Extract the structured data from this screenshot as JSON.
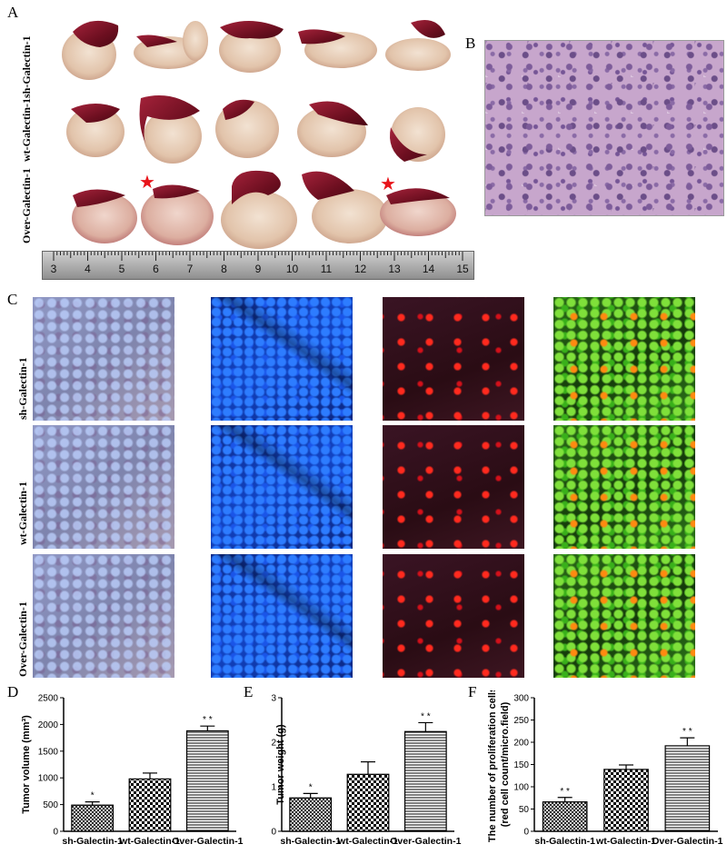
{
  "panels": {
    "A": "A",
    "B": "B",
    "C": "C",
    "D": "D",
    "E": "E",
    "F": "F"
  },
  "groups": [
    "sh-Galectin-1",
    "wt-Galectin-1",
    "Over-Galectin-1"
  ],
  "ruler_ticks": [
    "3",
    "4",
    "5",
    "6",
    "7",
    "8",
    "9",
    "10",
    "11",
    "12",
    "13",
    "14",
    "15"
  ],
  "star_glyph": "★",
  "colors": {
    "star": "#e8141a",
    "tumor_flesh": "#e9d2bd",
    "liver": "#7d1424"
  },
  "chart_data": [
    {
      "type": "bar",
      "panel": "D",
      "categories": [
        "sh-Galectin-1",
        "wt-Galectin-1",
        "Over-Galectin-1"
      ],
      "values": [
        490,
        980,
        1880
      ],
      "errors": [
        60,
        110,
        90
      ],
      "significance": [
        "*",
        "",
        "* *"
      ],
      "ylabel": "Tumor volume (mm³)",
      "yticks": [
        "0",
        "500",
        "1000",
        "1500",
        "2000",
        "2500"
      ],
      "ylim": [
        0,
        2500
      ]
    },
    {
      "type": "bar",
      "panel": "E",
      "categories": [
        "sh-Galectin-1",
        "wt-Galectin-1",
        "Over-Galectin-1"
      ],
      "values": [
        0.75,
        1.28,
        2.24
      ],
      "errors": [
        0.1,
        0.28,
        0.2
      ],
      "significance": [
        "*",
        "",
        "* *"
      ],
      "ylabel": "Tumor weight (g)",
      "yticks": [
        "0",
        "1",
        "2",
        "3"
      ],
      "ylim": [
        0,
        3
      ]
    },
    {
      "type": "bar",
      "panel": "F",
      "categories": [
        "sh-Galectin-1",
        "wt-Galectin-1",
        "Over-Galectin-1"
      ],
      "values": [
        66,
        139,
        192
      ],
      "errors": [
        10,
        10,
        18
      ],
      "significance": [
        "* *",
        "",
        "* *"
      ],
      "ylabel": "The number of proliferation cells",
      "ylabel2": "(red cell count/micro.field)",
      "yticks": [
        "0",
        "50",
        "100",
        "150",
        "200",
        "250",
        "300"
      ],
      "ylim": [
        0,
        300
      ]
    }
  ]
}
